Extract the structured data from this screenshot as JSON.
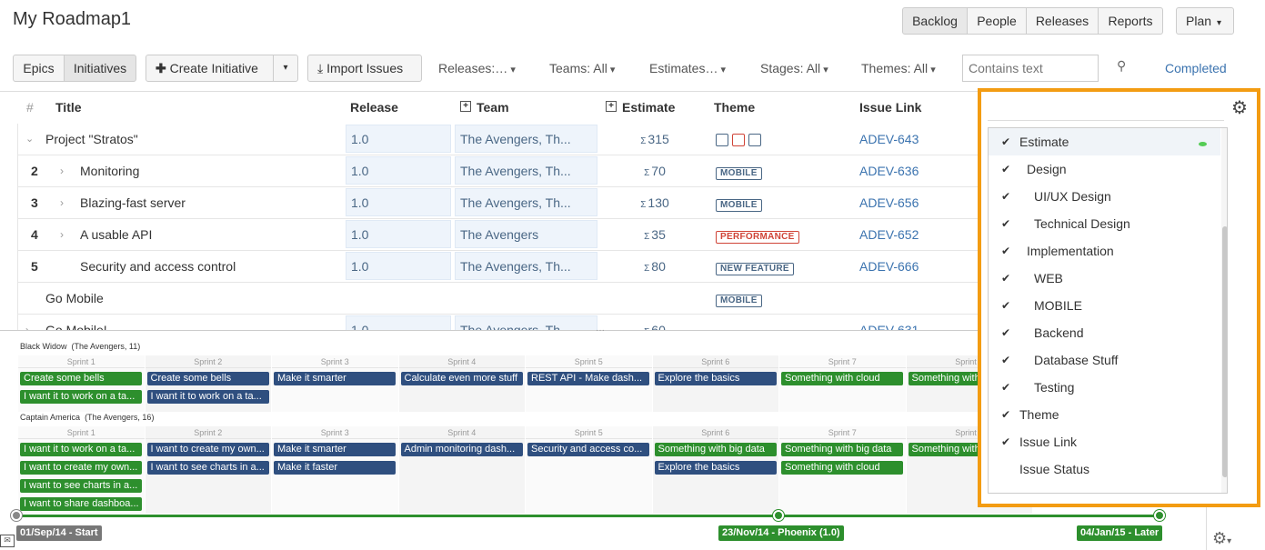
{
  "header": {
    "title": "My Roadmap1",
    "nav": [
      "Backlog",
      "People",
      "Releases",
      "Reports"
    ],
    "plan": "Plan"
  },
  "toolbar": {
    "view_tabs": [
      "Epics",
      "Initiatives"
    ],
    "create": "Create Initiative",
    "import": "Import Issues",
    "filters": [
      "Releases:…",
      "Teams: All",
      "Estimates…",
      "Stages: All",
      "Themes: All"
    ],
    "search_placeholder": "Contains text",
    "completed": "Completed"
  },
  "columns": {
    "num": "#",
    "title": "Title",
    "release": "Release",
    "team": "Team",
    "estimate": "Estimate",
    "theme": "Theme",
    "link": "Issue Link"
  },
  "rows": [
    {
      "num": "",
      "title": "Project \"Stratos\"",
      "release": "1.0",
      "team": "The Avengers, Th...",
      "estimate": "315",
      "link": "ADEV-643"
    },
    {
      "num": "2",
      "title": "Monitoring",
      "release": "1.0",
      "team": "The Avengers, Th...",
      "estimate": "70",
      "theme": "MOBILE",
      "link": "ADEV-636"
    },
    {
      "num": "3",
      "title": "Blazing-fast server",
      "release": "1.0",
      "team": "The Avengers, Th...",
      "estimate": "130",
      "theme": "MOBILE",
      "link": "ADEV-656"
    },
    {
      "num": "4",
      "title": "A usable API",
      "release": "1.0",
      "team": "The Avengers",
      "estimate": "35",
      "theme": "PERFORMANCE",
      "link": "ADEV-652"
    },
    {
      "num": "5",
      "title": "Security and access control",
      "release": "1.0",
      "team": "The Avengers, Th...",
      "estimate": "80",
      "theme": "NEW FEATURE",
      "link": "ADEV-666"
    },
    {
      "num": "",
      "title": "Go Mobile",
      "theme": "MOBILE"
    },
    {
      "num": "",
      "title": "Go Mobile!",
      "release": "1.0",
      "team": "The Avengers, Th...",
      "estimate": "60",
      "link": "ADEV-631"
    }
  ],
  "sigma": "Σ",
  "lanes": [
    {
      "title": "Black Widow",
      "sub": "(The Avengers, 11)"
    },
    {
      "title": "Captain America",
      "sub": "(The Avengers, 16)"
    }
  ],
  "sprints": [
    "Sprint 1",
    "Sprint 2",
    "Sprint 3",
    "Sprint 4",
    "Sprint 5",
    "Sprint 6",
    "Sprint 7",
    "Sprint 8"
  ],
  "lane1_cards": [
    {
      "t": "Create some bells",
      "c": "green",
      "s": 0,
      "r": 0
    },
    {
      "t": "I want it to work on a ta...",
      "c": "green",
      "s": 0,
      "r": 1
    },
    {
      "t": "Create some bells",
      "c": "navy",
      "s": 1,
      "r": 0
    },
    {
      "t": "I want it to work on a ta...",
      "c": "navy",
      "s": 1,
      "r": 1
    },
    {
      "t": "Make it smarter",
      "c": "navy",
      "s": 2,
      "r": 0
    },
    {
      "t": "Calculate even more stuff",
      "c": "navy",
      "s": 3,
      "r": 0
    },
    {
      "t": "REST API - Make dash...",
      "c": "navy",
      "s": 4,
      "r": 0
    },
    {
      "t": "Explore the basics",
      "c": "navy",
      "s": 5,
      "r": 0
    },
    {
      "t": "Something with cloud",
      "c": "green",
      "s": 6,
      "r": 0
    },
    {
      "t": "Something with c",
      "c": "green",
      "s": 7,
      "r": 0
    }
  ],
  "lane2_cards": [
    {
      "t": "I want it to work on a ta...",
      "c": "green",
      "s": 0,
      "r": 0
    },
    {
      "t": "I want to create my own...",
      "c": "green",
      "s": 0,
      "r": 1
    },
    {
      "t": "I want to see charts in a...",
      "c": "green",
      "s": 0,
      "r": 2
    },
    {
      "t": "I want to share dashboa...",
      "c": "green",
      "s": 0,
      "r": 3
    },
    {
      "t": "I want to create my own...",
      "c": "navy",
      "s": 1,
      "r": 0
    },
    {
      "t": "I want to see charts in a...",
      "c": "navy",
      "s": 1,
      "r": 1
    },
    {
      "t": "Make it smarter",
      "c": "navy",
      "s": 2,
      "r": 0
    },
    {
      "t": "Make it faster",
      "c": "navy",
      "s": 2,
      "r": 1
    },
    {
      "t": "Admin monitoring dash...",
      "c": "navy",
      "s": 3,
      "r": 0
    },
    {
      "t": "Security and access co...",
      "c": "navy",
      "s": 4,
      "r": 0
    },
    {
      "t": "Something with big data",
      "c": "green",
      "s": 5,
      "r": 0
    },
    {
      "t": "Explore the basics",
      "c": "navy",
      "s": 5,
      "r": 1
    },
    {
      "t": "Something with big data",
      "c": "green",
      "s": 6,
      "r": 0
    },
    {
      "t": "Something with cloud",
      "c": "green",
      "s": 6,
      "r": 1
    },
    {
      "t": "Something with c",
      "c": "green",
      "s": 7,
      "r": 0
    }
  ],
  "milestones": [
    "01/Sep/14 - Start",
    "23/Nov/14 - Phoenix (1.0)",
    "04/Jan/15 - Later"
  ],
  "column_menu": [
    {
      "label": "Estimate",
      "checked": true,
      "indent": 0
    },
    {
      "label": "Design",
      "checked": true,
      "indent": 1
    },
    {
      "label": "UI/UX Design",
      "checked": true,
      "indent": 2
    },
    {
      "label": "Technical Design",
      "checked": true,
      "indent": 2
    },
    {
      "label": "Implementation",
      "checked": true,
      "indent": 1
    },
    {
      "label": "WEB",
      "checked": true,
      "indent": 2
    },
    {
      "label": "MOBILE",
      "checked": true,
      "indent": 2
    },
    {
      "label": "Backend",
      "checked": true,
      "indent": 2
    },
    {
      "label": "Database Stuff",
      "checked": true,
      "indent": 2
    },
    {
      "label": "Testing",
      "checked": true,
      "indent": 2
    },
    {
      "label": "Theme",
      "checked": true,
      "indent": 0
    },
    {
      "label": "Issue Link",
      "checked": true,
      "indent": 0
    },
    {
      "label": "Issue Status",
      "checked": false,
      "indent": 0
    }
  ],
  "colors": {
    "accent": "#3b73af",
    "highlight": "#f39c12",
    "green": "#2d8f2d",
    "navy": "#2f4f7f"
  }
}
